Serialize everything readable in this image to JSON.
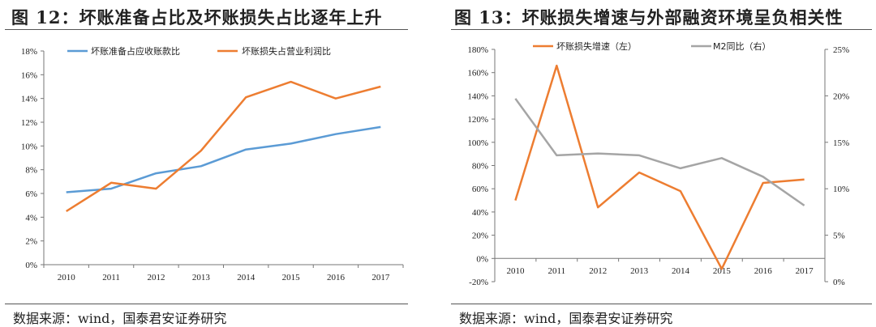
{
  "chart_data": [
    {
      "type": "line",
      "title": "图 12：坏账准备占比及坏账损失占比逐年上升",
      "categories": [
        "2010",
        "2011",
        "2012",
        "2013",
        "2014",
        "2015",
        "2016",
        "2017"
      ],
      "y_ticks": [
        "0%",
        "2%",
        "4%",
        "6%",
        "8%",
        "10%",
        "12%",
        "14%",
        "16%",
        "18%"
      ],
      "ylim": [
        0,
        18
      ],
      "legend_position": "top",
      "series": [
        {
          "name": "坏账准备占应收账款比",
          "color": "#5B9BD5",
          "axis": "left",
          "values": [
            6.1,
            6.4,
            7.7,
            8.3,
            9.7,
            10.2,
            11.0,
            11.6
          ]
        },
        {
          "name": "坏账损失占营业利润比",
          "color": "#ED7D31",
          "axis": "left",
          "values": [
            4.5,
            6.9,
            6.4,
            9.6,
            14.1,
            15.4,
            14.0,
            15.0
          ]
        }
      ],
      "source": "数据来源：wind，国泰君安证券研究"
    },
    {
      "type": "line",
      "title": "图 13：坏账损失增速与外部融资环境呈负相关性",
      "categories": [
        "2010",
        "2011",
        "2012",
        "2013",
        "2014",
        "2015",
        "2016",
        "2017"
      ],
      "y_ticks": [
        "-20%",
        "0%",
        "20%",
        "40%",
        "60%",
        "80%",
        "100%",
        "120%",
        "140%",
        "160%",
        "180%"
      ],
      "ylim": [
        -20,
        180
      ],
      "y2_ticks": [
        "0%",
        "5%",
        "10%",
        "15%",
        "20%",
        "25%"
      ],
      "y2lim": [
        0,
        25
      ],
      "legend_position": "top",
      "series": [
        {
          "name": "坏账损失增速（左）",
          "color": "#ED7D31",
          "axis": "left",
          "values": [
            50,
            166,
            44,
            74,
            58,
            -9,
            65,
            68
          ]
        },
        {
          "name": "M2同比（右）",
          "color": "#A5A5A5",
          "axis": "right",
          "values": [
            19.7,
            13.6,
            13.8,
            13.6,
            12.2,
            13.3,
            11.3,
            8.2
          ]
        }
      ],
      "source": "数据来源：wind，国泰君安证券研究"
    }
  ]
}
